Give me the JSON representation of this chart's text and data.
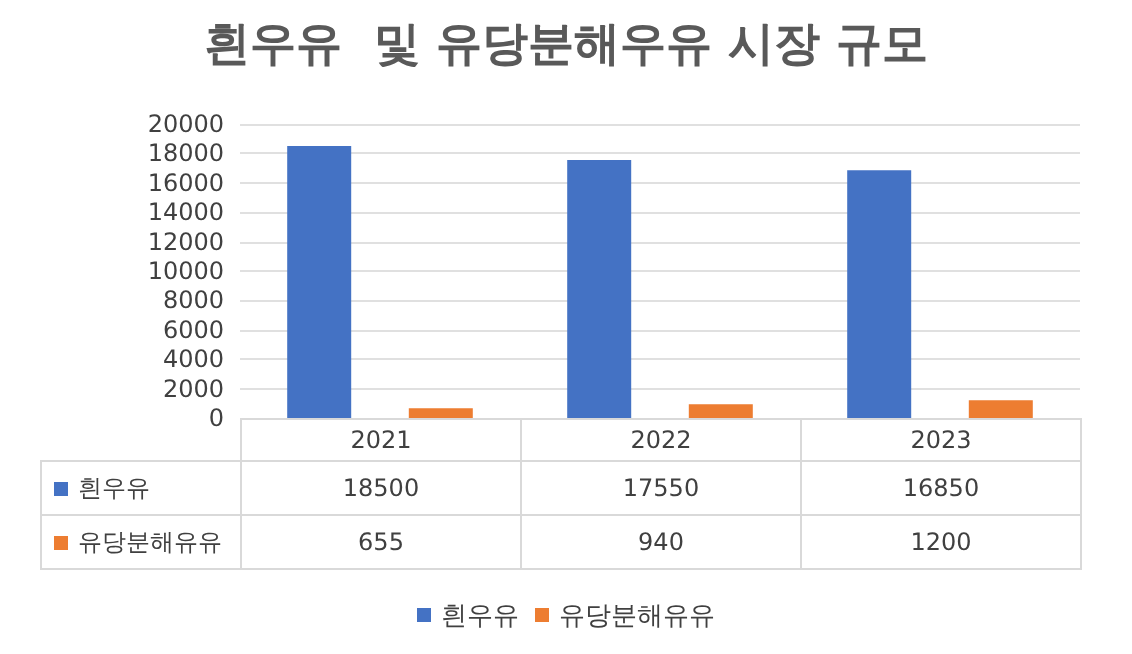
{
  "chart_data": {
    "type": "bar",
    "title": "흰우유  및 유당분해우유 시장 규모",
    "categories": [
      "2021",
      "2022",
      "2023"
    ],
    "series": [
      {
        "name": "흰우유",
        "color": "#4472c4",
        "values": [
          18500,
          17550,
          16850
        ]
      },
      {
        "name": "유당분해유유",
        "color": "#ed7d31",
        "values": [
          655,
          940,
          1200
        ]
      }
    ],
    "ylim": [
      0,
      20000
    ],
    "yticks": [
      0,
      2000,
      4000,
      6000,
      8000,
      10000,
      12000,
      14000,
      16000,
      18000,
      20000
    ],
    "grid": "y",
    "legend": "bottom",
    "data_labels": true
  }
}
